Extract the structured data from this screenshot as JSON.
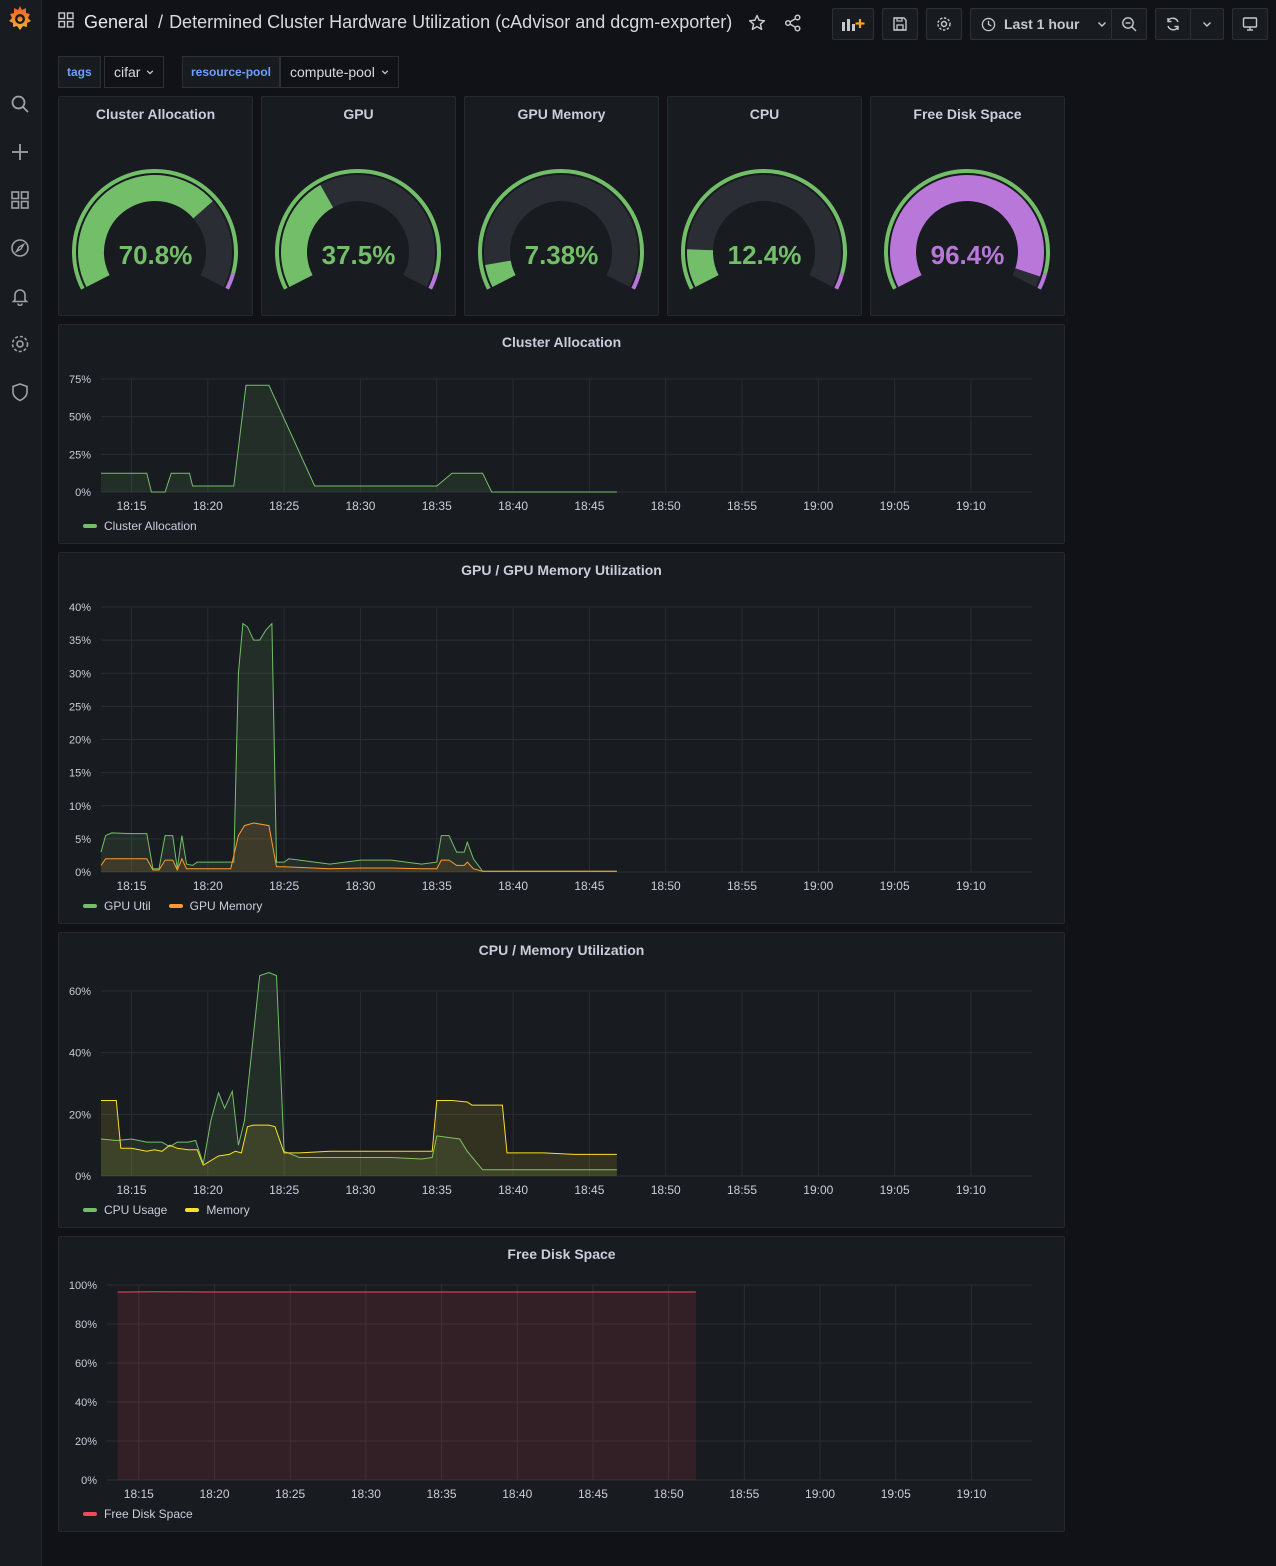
{
  "header": {
    "breadcrumb_root": "General",
    "breadcrumb_sep": "/",
    "dashboard_title": "Determined Cluster Hardware Utilization (cAdvisor and dcgm-exporter)",
    "time_range_label": "Last 1 hour"
  },
  "variables": [
    {
      "label": "tags",
      "value": "cifar"
    },
    {
      "label": "resource-pool",
      "value": "compute-pool"
    }
  ],
  "colors": {
    "green": "#73bf69",
    "purple": "#b877d9",
    "orange": "#ff9830",
    "yellow": "#fade2a",
    "red": "#f2495c",
    "track": "#2a2d33"
  },
  "gauges": [
    {
      "title": "Cluster Allocation",
      "value": 70.8,
      "display": "70.8%",
      "color": "#73bf69"
    },
    {
      "title": "GPU",
      "value": 37.5,
      "display": "37.5%",
      "color": "#73bf69"
    },
    {
      "title": "GPU Memory",
      "value": 7.38,
      "display": "7.38%",
      "color": "#73bf69"
    },
    {
      "title": "CPU",
      "value": 12.4,
      "display": "12.4%",
      "color": "#73bf69"
    },
    {
      "title": "Free Disk Space",
      "value": 96.4,
      "display": "96.4%",
      "color": "#b877d9"
    }
  ],
  "chart_data": [
    {
      "type": "area",
      "title": "Cluster Allocation",
      "x_ticks": [
        "18:15",
        "18:20",
        "18:25",
        "18:30",
        "18:35",
        "18:40",
        "18:45",
        "18:50",
        "18:55",
        "19:00",
        "19:05",
        "19:10"
      ],
      "y_ticks": [
        "0%",
        "25%",
        "50%",
        "75%"
      ],
      "ylim": [
        0,
        75
      ],
      "xlim_minutes": [
        13,
        74
      ],
      "series": [
        {
          "name": "Cluster Allocation",
          "color": "#73bf69",
          "x": [
            13,
            14,
            16,
            16.3,
            17.2,
            17.6,
            18.3,
            18.8,
            19,
            21,
            21.7,
            22.5,
            23,
            23.7,
            24,
            27,
            28,
            28.3,
            32,
            35,
            36,
            36.3,
            38,
            38.6,
            39,
            41.5,
            46.8
          ],
          "y": [
            12.5,
            12.5,
            12.5,
            0,
            0,
            12.5,
            12.5,
            12.5,
            4,
            4,
            4,
            70.8,
            70.8,
            70.8,
            70.8,
            4,
            4,
            4,
            4,
            4,
            12.5,
            12.5,
            12.5,
            0,
            0,
            0,
            0
          ]
        }
      ]
    },
    {
      "type": "area",
      "title": "GPU / GPU Memory Utilization",
      "x_ticks": [
        "18:15",
        "18:20",
        "18:25",
        "18:30",
        "18:35",
        "18:40",
        "18:45",
        "18:50",
        "18:55",
        "19:00",
        "19:05",
        "19:10"
      ],
      "y_ticks": [
        "0%",
        "5%",
        "10%",
        "15%",
        "20%",
        "25%",
        "30%",
        "35%",
        "40%"
      ],
      "ylim": [
        0,
        40
      ],
      "xlim_minutes": [
        13,
        74
      ],
      "series": [
        {
          "name": "GPU Util",
          "color": "#73bf69",
          "x": [
            13,
            13.3,
            13.7,
            15,
            16,
            16.4,
            16.8,
            17.2,
            17.7,
            18,
            18.3,
            18.6,
            19,
            19.3,
            19.8,
            20,
            21,
            21.7,
            22,
            22.3,
            22.6,
            23,
            23.4,
            23.8,
            24.2,
            24.5,
            25,
            25.3,
            26,
            28,
            30,
            31,
            32,
            34,
            35,
            35.3,
            35.8,
            36.3,
            36.8,
            37,
            37.4,
            38,
            42,
            46.8
          ],
          "y": [
            3,
            5.5,
            5.9,
            5.8,
            5.8,
            0.5,
            0.5,
            5.5,
            5.5,
            0.5,
            5.5,
            1.2,
            1,
            1.5,
            1.5,
            1.5,
            1.5,
            1.5,
            30,
            37.5,
            37,
            35,
            35,
            36.5,
            37.5,
            1.5,
            1.5,
            2,
            1.8,
            1.2,
            1.8,
            1.8,
            1.8,
            1.2,
            1.5,
            5.5,
            5.5,
            3,
            3,
            4.5,
            2,
            0.1,
            0.1,
            0.1
          ]
        },
        {
          "name": "GPU Memory",
          "color": "#ff9830",
          "x": [
            13,
            13.3,
            15,
            16,
            16.4,
            16.8,
            17.2,
            17.7,
            18,
            18.3,
            18.6,
            19,
            21,
            21.5,
            22,
            22.4,
            23,
            24,
            24.5,
            25,
            28,
            30,
            32,
            34,
            35,
            35.3,
            35.8,
            36.3,
            36.8,
            37,
            37.4,
            38,
            46.8
          ],
          "y": [
            1,
            2,
            2,
            2,
            0.3,
            0.3,
            1.8,
            1.8,
            0.3,
            2,
            0.5,
            0.5,
            0.5,
            0.5,
            5.5,
            7,
            7.4,
            7,
            0.8,
            0.8,
            0.5,
            0.6,
            0.6,
            0.5,
            0.5,
            1.8,
            1.8,
            1,
            1,
            1.5,
            0.5,
            0.1,
            0.1
          ]
        }
      ]
    },
    {
      "type": "area",
      "title": "CPU / Memory Utilization",
      "x_ticks": [
        "18:15",
        "18:20",
        "18:25",
        "18:30",
        "18:35",
        "18:40",
        "18:45",
        "18:50",
        "18:55",
        "19:00",
        "19:05",
        "19:10"
      ],
      "y_ticks": [
        "0%",
        "20%",
        "40%",
        "60%"
      ],
      "ylim": [
        0,
        70
      ],
      "xlim_minutes": [
        13,
        74
      ],
      "series": [
        {
          "name": "CPU Usage",
          "color": "#73bf69",
          "x": [
            13,
            14,
            15,
            16,
            17,
            17.5,
            18,
            18.7,
            19.2,
            19.7,
            20.2,
            20.7,
            21.1,
            21.6,
            22,
            22.4,
            22.8,
            23.4,
            24,
            24.5,
            25,
            26,
            28,
            30,
            32,
            34,
            34.7,
            35,
            36.5,
            37,
            37.5,
            38,
            40,
            42,
            44,
            46.8
          ],
          "y": [
            12,
            11.5,
            12,
            11,
            11,
            9.5,
            11,
            11,
            11.5,
            4,
            18,
            27,
            22,
            27.5,
            10,
            18,
            37,
            65,
            66,
            65,
            8,
            6,
            6,
            6,
            6,
            5.5,
            6,
            13,
            12,
            8,
            5,
            2,
            2,
            2,
            2,
            2
          ]
        },
        {
          "name": "Memory",
          "color": "#fade2a",
          "x": [
            13,
            14,
            14.3,
            15,
            16,
            16.5,
            17,
            17.5,
            18,
            18.7,
            19.3,
            19.7,
            20.7,
            21.4,
            21.8,
            22.2,
            22.6,
            23,
            24,
            24.4,
            25,
            26,
            28,
            30,
            34,
            34.7,
            35,
            36,
            37,
            37.3,
            39.3,
            39.6,
            42,
            44,
            46.8
          ],
          "y": [
            24.5,
            24.5,
            9,
            9,
            8,
            8.5,
            8,
            10,
            9,
            8.5,
            8.5,
            3.5,
            6.5,
            7,
            8,
            7.5,
            16,
            16.5,
            16.5,
            16,
            7.5,
            7.5,
            8,
            8,
            8,
            8,
            24.5,
            24.5,
            24,
            23,
            23,
            7.5,
            7.5,
            7,
            7
          ]
        }
      ]
    },
    {
      "type": "area",
      "title": "Free Disk Space",
      "x_ticks": [
        "18:15",
        "18:20",
        "18:25",
        "18:30",
        "18:35",
        "18:40",
        "18:45",
        "18:50",
        "18:55",
        "19:00",
        "19:05",
        "19:10"
      ],
      "y_ticks": [
        "0%",
        "20%",
        "40%",
        "60%",
        "80%",
        "100%"
      ],
      "ylim": [
        0,
        100
      ],
      "xlim_minutes": [
        12.9,
        74
      ],
      "series": [
        {
          "name": "Free Disk Space",
          "color": "#f2495c",
          "x": [
            13.6,
            16,
            20,
            25,
            30,
            35,
            40,
            45,
            51.8
          ],
          "y": [
            96.4,
            96.5,
            96.4,
            96.4,
            96.4,
            96.4,
            96.4,
            96.4,
            96.4
          ]
        }
      ]
    }
  ]
}
